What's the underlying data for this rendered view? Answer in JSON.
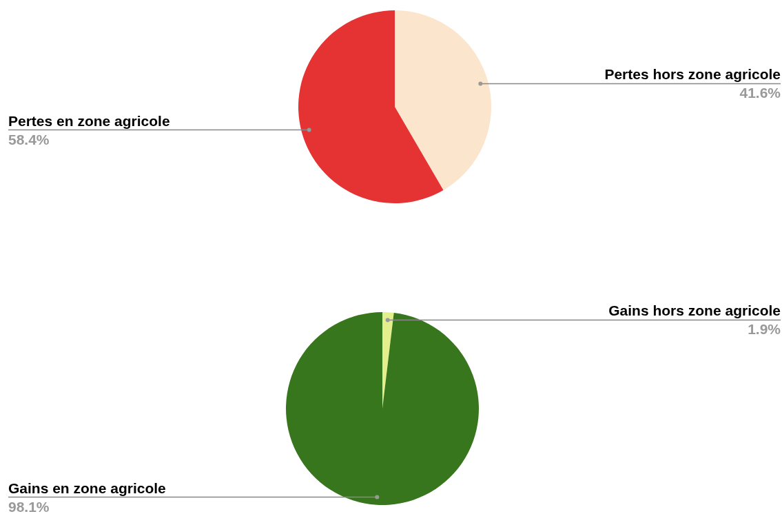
{
  "chart_data": [
    {
      "type": "pie",
      "categories": [
        "Pertes hors zone agricole",
        "Pertes en zone agricole"
      ],
      "values": [
        41.6,
        58.4
      ],
      "colors": [
        "#fce5cd",
        "#e53232"
      ],
      "data_labels": true,
      "value_labels": [
        "41.6%",
        "58.4%"
      ]
    },
    {
      "type": "pie",
      "categories": [
        "Gains hors zone agricole",
        "Gains en zone agricole"
      ],
      "values": [
        1.9,
        98.1
      ],
      "colors": [
        "#e3ee8c",
        "#38761d"
      ],
      "data_labels": true,
      "value_labels": [
        "1.9%",
        "98.1%"
      ]
    }
  ]
}
